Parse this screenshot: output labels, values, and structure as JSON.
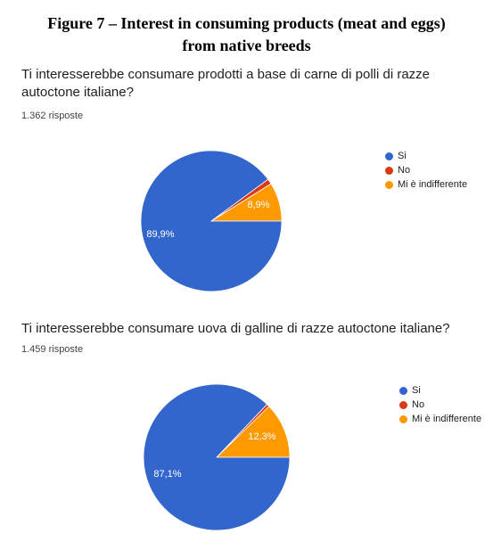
{
  "figure": {
    "title_line1": "Figure 7 – Interest in consuming products (meat and eggs)",
    "title_line2": "from native breeds"
  },
  "chart_data": [
    {
      "type": "pie",
      "title": "Ti interesserebbe consumare prodotti a base di carne di polli di razze autoctone italiane?",
      "responses": "1.362 risposte",
      "categories": [
        "Si",
        "No",
        "Mi è indifferente"
      ],
      "values": [
        89.9,
        1.2,
        8.9
      ],
      "labels": [
        "89,9%",
        "",
        "8,9%"
      ],
      "colors": [
        "#3366cc",
        "#dc3912",
        "#ff9900"
      ],
      "legend_position": "top-right"
    },
    {
      "type": "pie",
      "title": "Ti interesserebbe consumare uova di galline di razze autoctone italiane?",
      "responses": "1.459 risposte",
      "categories": [
        "Si",
        "No",
        "Mi è indifferente"
      ],
      "values": [
        87.1,
        0.6,
        12.3
      ],
      "labels": [
        "87,1%",
        "",
        "12,3%"
      ],
      "colors": [
        "#3366cc",
        "#dc3912",
        "#ff9900"
      ],
      "legend_position": "top-right"
    }
  ]
}
